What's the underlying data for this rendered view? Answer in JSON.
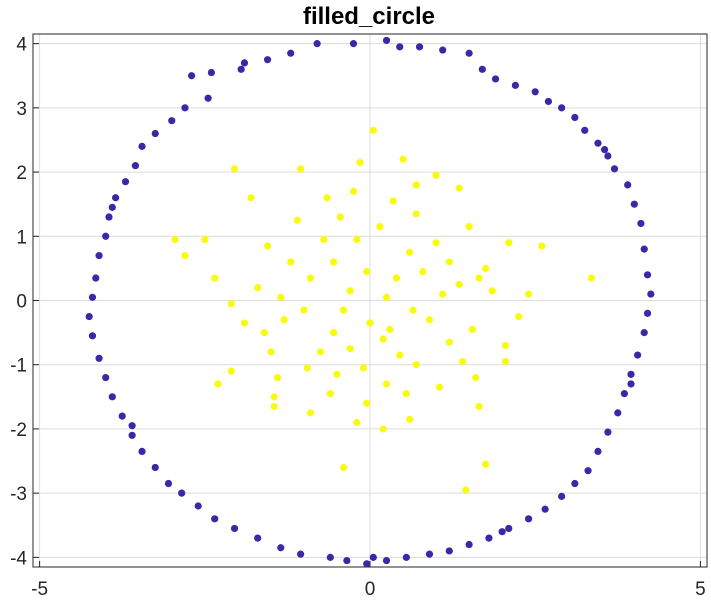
{
  "chart_data": {
    "type": "scatter",
    "title": "filled_circle",
    "xlabel": "",
    "ylabel": "",
    "xlim": [
      -5.1,
      5.1
    ],
    "ylim": [
      -4.15,
      4.15
    ],
    "xticks": [
      -5,
      0,
      5
    ],
    "xtick_labels": [
      "-5",
      "0",
      "5"
    ],
    "yticks": [
      -4,
      -3,
      -2,
      -1,
      0,
      1,
      2,
      3,
      4
    ],
    "ytick_labels": [
      "-4",
      "-3",
      "-2",
      "-1",
      "0",
      "1",
      "2",
      "3",
      "4"
    ],
    "grid": true,
    "legend": "none",
    "series": [
      {
        "color": "#3d26a8",
        "points": [
          [
            -0.8,
            4.0
          ],
          [
            -0.25,
            4.0
          ],
          [
            0.25,
            4.05
          ],
          [
            0.45,
            3.95
          ],
          [
            0.75,
            3.95
          ],
          [
            1.1,
            3.9
          ],
          [
            1.5,
            3.85
          ],
          [
            -1.2,
            3.85
          ],
          [
            -1.55,
            3.75
          ],
          [
            -1.95,
            3.6
          ],
          [
            -2.4,
            3.55
          ],
          [
            -2.7,
            3.5
          ],
          [
            1.7,
            3.6
          ],
          [
            1.9,
            3.45
          ],
          [
            2.2,
            3.35
          ],
          [
            2.5,
            3.25
          ],
          [
            2.7,
            3.1
          ],
          [
            2.9,
            3.0
          ],
          [
            3.1,
            2.85
          ],
          [
            -2.45,
            3.15
          ],
          [
            -2.8,
            3.0
          ],
          [
            -3.0,
            2.8
          ],
          [
            -3.25,
            2.6
          ],
          [
            -3.45,
            2.4
          ],
          [
            3.25,
            2.65
          ],
          [
            3.45,
            2.45
          ],
          [
            3.6,
            2.25
          ],
          [
            3.7,
            2.05
          ],
          [
            3.9,
            1.8
          ],
          [
            -3.55,
            2.1
          ],
          [
            -3.7,
            1.85
          ],
          [
            -3.85,
            1.6
          ],
          [
            -3.95,
            1.3
          ],
          [
            -4.0,
            1.0
          ],
          [
            4.0,
            1.5
          ],
          [
            4.1,
            1.2
          ],
          [
            4.15,
            0.8
          ],
          [
            4.2,
            0.4
          ],
          [
            4.25,
            0.1
          ],
          [
            -4.1,
            0.7
          ],
          [
            -4.15,
            0.35
          ],
          [
            -4.2,
            0.05
          ],
          [
            -4.25,
            -0.25
          ],
          [
            -4.2,
            -0.55
          ],
          [
            4.2,
            -0.2
          ],
          [
            4.15,
            -0.5
          ],
          [
            4.05,
            -0.85
          ],
          [
            3.95,
            -1.15
          ],
          [
            3.85,
            -1.45
          ],
          [
            -4.1,
            -0.9
          ],
          [
            -4.0,
            -1.2
          ],
          [
            -3.9,
            -1.5
          ],
          [
            -3.75,
            -1.8
          ],
          [
            -3.6,
            -2.1
          ],
          [
            3.75,
            -1.75
          ],
          [
            3.6,
            -2.05
          ],
          [
            3.45,
            -2.35
          ],
          [
            3.3,
            -2.65
          ],
          [
            3.1,
            -2.85
          ],
          [
            -3.45,
            -2.35
          ],
          [
            -3.25,
            -2.6
          ],
          [
            -3.05,
            -2.85
          ],
          [
            -2.85,
            -3.0
          ],
          [
            -2.6,
            -3.2
          ],
          [
            2.9,
            -3.05
          ],
          [
            2.65,
            -3.25
          ],
          [
            2.4,
            -3.4
          ],
          [
            2.1,
            -3.55
          ],
          [
            1.8,
            -3.7
          ],
          [
            -2.35,
            -3.4
          ],
          [
            -2.05,
            -3.55
          ],
          [
            -1.7,
            -3.7
          ],
          [
            -1.35,
            -3.85
          ],
          [
            -1.05,
            -3.95
          ],
          [
            1.5,
            -3.8
          ],
          [
            1.2,
            -3.9
          ],
          [
            0.9,
            -3.95
          ],
          [
            0.55,
            -4.0
          ],
          [
            0.25,
            -4.05
          ],
          [
            -0.35,
            -4.05
          ],
          [
            -0.05,
            -4.1
          ],
          [
            0.05,
            -4.0
          ],
          [
            -0.6,
            -4.0
          ],
          [
            -1.9,
            3.7
          ],
          [
            2.0,
            -3.6
          ],
          [
            -3.6,
            -1.95
          ],
          [
            3.55,
            2.35
          ],
          [
            -3.9,
            1.45
          ],
          [
            3.95,
            -1.3
          ]
        ]
      },
      {
        "color": "#f9fb0e",
        "points": [
          [
            0.05,
            2.65
          ],
          [
            0.5,
            2.2
          ],
          [
            -0.15,
            2.15
          ],
          [
            -1.05,
            2.05
          ],
          [
            1.0,
            1.95
          ],
          [
            1.35,
            1.75
          ],
          [
            -0.65,
            1.6
          ],
          [
            0.35,
            1.55
          ],
          [
            -1.8,
            1.6
          ],
          [
            -2.05,
            2.05
          ],
          [
            -2.95,
            0.95
          ],
          [
            -2.8,
            0.7
          ],
          [
            -2.35,
            0.35
          ],
          [
            -1.55,
            0.85
          ],
          [
            -0.45,
            1.3
          ],
          [
            0.7,
            1.35
          ],
          [
            1.5,
            1.15
          ],
          [
            2.1,
            0.9
          ],
          [
            2.6,
            0.85
          ],
          [
            3.35,
            0.35
          ],
          [
            1.65,
            0.35
          ],
          [
            1.1,
            0.1
          ],
          [
            0.4,
            0.35
          ],
          [
            -0.3,
            0.15
          ],
          [
            -0.9,
            0.35
          ],
          [
            -1.7,
            0.2
          ],
          [
            -2.1,
            -0.05
          ],
          [
            -1.3,
            -0.3
          ],
          [
            -0.55,
            -0.5
          ],
          [
            0.2,
            -0.6
          ],
          [
            0.9,
            -0.3
          ],
          [
            1.55,
            -0.45
          ],
          [
            2.05,
            -0.7
          ],
          [
            2.05,
            -0.95
          ],
          [
            1.4,
            -0.95
          ],
          [
            0.7,
            -1.0
          ],
          [
            -0.1,
            -1.05
          ],
          [
            -0.75,
            -0.8
          ],
          [
            -1.5,
            -0.8
          ],
          [
            -2.1,
            -1.1
          ],
          [
            -2.3,
            -1.3
          ],
          [
            -1.45,
            -1.5
          ],
          [
            -0.6,
            -1.45
          ],
          [
            0.25,
            -1.3
          ],
          [
            1.05,
            -1.35
          ],
          [
            1.65,
            -1.65
          ],
          [
            0.6,
            -1.85
          ],
          [
            -0.2,
            -1.9
          ],
          [
            -0.9,
            -1.75
          ],
          [
            -1.45,
            -1.65
          ],
          [
            0.2,
            -2.0
          ],
          [
            -0.4,
            -2.6
          ],
          [
            1.75,
            -2.55
          ],
          [
            1.45,
            -2.95
          ],
          [
            -1.4,
            -1.2
          ],
          [
            2.4,
            0.1
          ],
          [
            -0.2,
            0.95
          ],
          [
            0.6,
            0.75
          ],
          [
            1.2,
            0.6
          ],
          [
            -1.2,
            0.6
          ],
          [
            -0.55,
            0.6
          ],
          [
            -0.05,
            0.45
          ],
          [
            0.25,
            0.05
          ],
          [
            -0.4,
            -0.15
          ],
          [
            0.65,
            -0.15
          ],
          [
            1.2,
            -0.65
          ],
          [
            -1.0,
            -0.15
          ],
          [
            -1.6,
            -0.5
          ],
          [
            -2.5,
            0.95
          ],
          [
            1.85,
            0.15
          ],
          [
            0.0,
            -0.35
          ],
          [
            0.45,
            -0.85
          ],
          [
            -0.3,
            -0.75
          ],
          [
            -0.95,
            -1.05
          ],
          [
            1.0,
            0.9
          ],
          [
            0.15,
            1.15
          ],
          [
            -0.7,
            0.95
          ],
          [
            -1.1,
            1.25
          ],
          [
            1.75,
            0.5
          ],
          [
            -0.25,
            1.7
          ],
          [
            0.7,
            1.8
          ],
          [
            -1.35,
            0.05
          ],
          [
            1.35,
            0.25
          ],
          [
            0.8,
            0.45
          ],
          [
            -0.5,
            -1.15
          ],
          [
            0.3,
            -0.45
          ],
          [
            -1.9,
            -0.35
          ],
          [
            2.25,
            -0.25
          ],
          [
            1.6,
            -1.2
          ],
          [
            -0.05,
            -1.6
          ],
          [
            0.55,
            -1.45
          ]
        ]
      }
    ]
  }
}
